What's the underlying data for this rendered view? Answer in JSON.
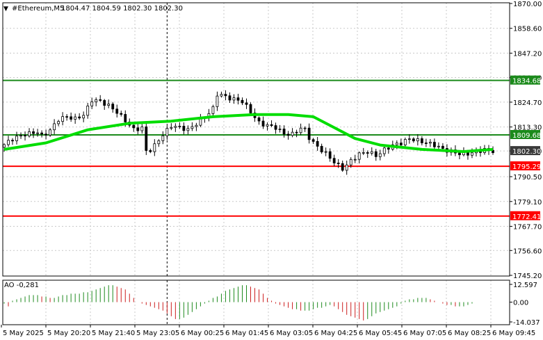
{
  "header": {
    "symbol": "#Ethereum,M5",
    "ohlc": "1804.47 1804.59 1802.30 1802.30",
    "menu_arrow": "triangle-down-icon"
  },
  "chart_data": [
    {
      "type": "candlestick",
      "title": "#Ethereum,M5",
      "ylim": [
        1745.2,
        1870.0
      ],
      "y_ticks": [
        "1870.00",
        "1858.60",
        "1847.20",
        "1836.00",
        "1824.70",
        "1813.30",
        "1802.30",
        "1790.50",
        "1779.10",
        "1767.70",
        "1756.60",
        "1745.20"
      ],
      "x_ticks": [
        "5 May 2025",
        "5 May 20:20",
        "5 May 21:40",
        "5 May 23:05",
        "6 May 00:25",
        "6 May 01:45",
        "6 May 03:05",
        "6 May 04:25",
        "6 May 05:45",
        "6 May 07:05",
        "6 May 08:25",
        "6 May 09:45"
      ],
      "price_path": [
        [
          0,
          1804
        ],
        [
          3,
          1808
        ],
        [
          6,
          1810
        ],
        [
          9,
          1811
        ],
        [
          10,
          1809
        ],
        [
          12,
          1812
        ],
        [
          14,
          1817
        ],
        [
          16,
          1818
        ],
        [
          18,
          1817
        ],
        [
          20,
          1819
        ],
        [
          22,
          1826
        ],
        [
          24,
          1825
        ],
        [
          26,
          1823
        ],
        [
          28,
          1820
        ],
        [
          30,
          1816
        ],
        [
          32,
          1812
        ],
        [
          34,
          1813
        ],
        [
          35,
          1801
        ],
        [
          37,
          1805
        ],
        [
          39,
          1810
        ],
        [
          41,
          1814
        ],
        [
          43,
          1813
        ],
        [
          45,
          1812
        ],
        [
          47,
          1815
        ],
        [
          49,
          1818
        ],
        [
          51,
          1822
        ],
        [
          52,
          1829
        ],
        [
          54,
          1827
        ],
        [
          56,
          1826
        ],
        [
          58,
          1825
        ],
        [
          60,
          1820
        ],
        [
          62,
          1815
        ],
        [
          64,
          1814
        ],
        [
          66,
          1813
        ],
        [
          68,
          1810
        ],
        [
          70,
          1810
        ],
        [
          72,
          1813
        ],
        [
          73,
          1812
        ],
        [
          74,
          1808
        ],
        [
          76,
          1804
        ],
        [
          78,
          1801
        ],
        [
          80,
          1797
        ],
        [
          82,
          1794
        ],
        [
          84,
          1798
        ],
        [
          86,
          1801
        ],
        [
          88,
          1802
        ],
        [
          90,
          1800
        ],
        [
          92,
          1803
        ],
        [
          94,
          1805
        ],
        [
          96,
          1806
        ],
        [
          98,
          1808
        ],
        [
          100,
          1807
        ],
        [
          102,
          1806
        ],
        [
          104,
          1805
        ],
        [
          106,
          1803
        ],
        [
          108,
          1802
        ],
        [
          110,
          1801
        ],
        [
          112,
          1801
        ],
        [
          114,
          1802
        ],
        [
          116,
          1803
        ],
        [
          117,
          1802.3
        ]
      ],
      "series": [
        {
          "name": "",
          "color": "#00dd00",
          "values": [
            [
              0,
              1803
            ],
            [
              10,
              1806
            ],
            [
              20,
              1812
            ],
            [
              30,
              1815
            ],
            [
              40,
              1816
            ],
            [
              50,
              1818
            ],
            [
              60,
              1819
            ],
            [
              68,
              1819
            ],
            [
              74,
              1818
            ],
            [
              78,
              1814
            ],
            [
              84,
              1808
            ],
            [
              90,
              1805
            ],
            [
              100,
              1803
            ],
            [
              110,
              1802
            ],
            [
              117,
              1803
            ]
          ]
        }
      ],
      "horizontal_lines": [
        {
          "value": 1834.68,
          "label": "1834.68",
          "color": "#1b8a1b"
        },
        {
          "value": 1809.68,
          "label": "1809.68",
          "color": "#1b8a1b"
        },
        {
          "value": 1795.29,
          "label": "1795.29",
          "color": "#ff0000"
        },
        {
          "value": 1772.41,
          "label": "1772.41",
          "color": "#ff0000"
        }
      ],
      "current_price": {
        "value": 1802.3,
        "label": "1802.30",
        "color": "#3a3a3a"
      },
      "grid": true,
      "vertical_marker_index": 39
    },
    {
      "type": "bar",
      "title": "AO -0,281",
      "ylim": [
        -14.037,
        12.597
      ],
      "y_ticks": [
        "12.597",
        "0.00",
        "-14.037"
      ],
      "values": [
        -1,
        -3,
        1,
        2,
        3,
        4,
        5,
        5,
        5,
        4,
        4,
        3,
        3,
        4,
        5,
        5,
        6,
        6,
        6,
        7,
        7,
        8,
        9,
        10,
        11,
        12,
        12,
        11,
        10,
        9,
        6,
        3,
        0,
        -1,
        -2,
        -3,
        -4,
        -5,
        -6,
        -8,
        -10,
        -12,
        -12,
        -11,
        -9,
        -7,
        -5,
        -3,
        -1,
        1,
        3,
        4,
        6,
        8,
        9,
        10,
        11,
        12,
        12,
        11,
        10,
        9,
        6,
        3,
        1,
        -1,
        -2,
        -3,
        -4,
        -5,
        -5,
        -6,
        -6,
        -6,
        -5,
        -4,
        -4,
        -3,
        -2,
        -3,
        -5,
        -7,
        -9,
        -10,
        -11,
        -12,
        -13,
        -12,
        -10,
        -8,
        -7,
        -6,
        -5,
        -4,
        -3,
        -1,
        1,
        2,
        2,
        3,
        3,
        3,
        2,
        1,
        0,
        -1,
        -2,
        -2,
        -3,
        -3,
        -3,
        -2,
        -1,
        0,
        0,
        0
      ],
      "colors": {
        "up": "#1e8a1e",
        "down": "#cc1e1e"
      },
      "grid": true
    }
  ],
  "colors": {
    "grid": "#c8c8c8",
    "axis": "#000000",
    "label_box_text": "#ffffff"
  }
}
